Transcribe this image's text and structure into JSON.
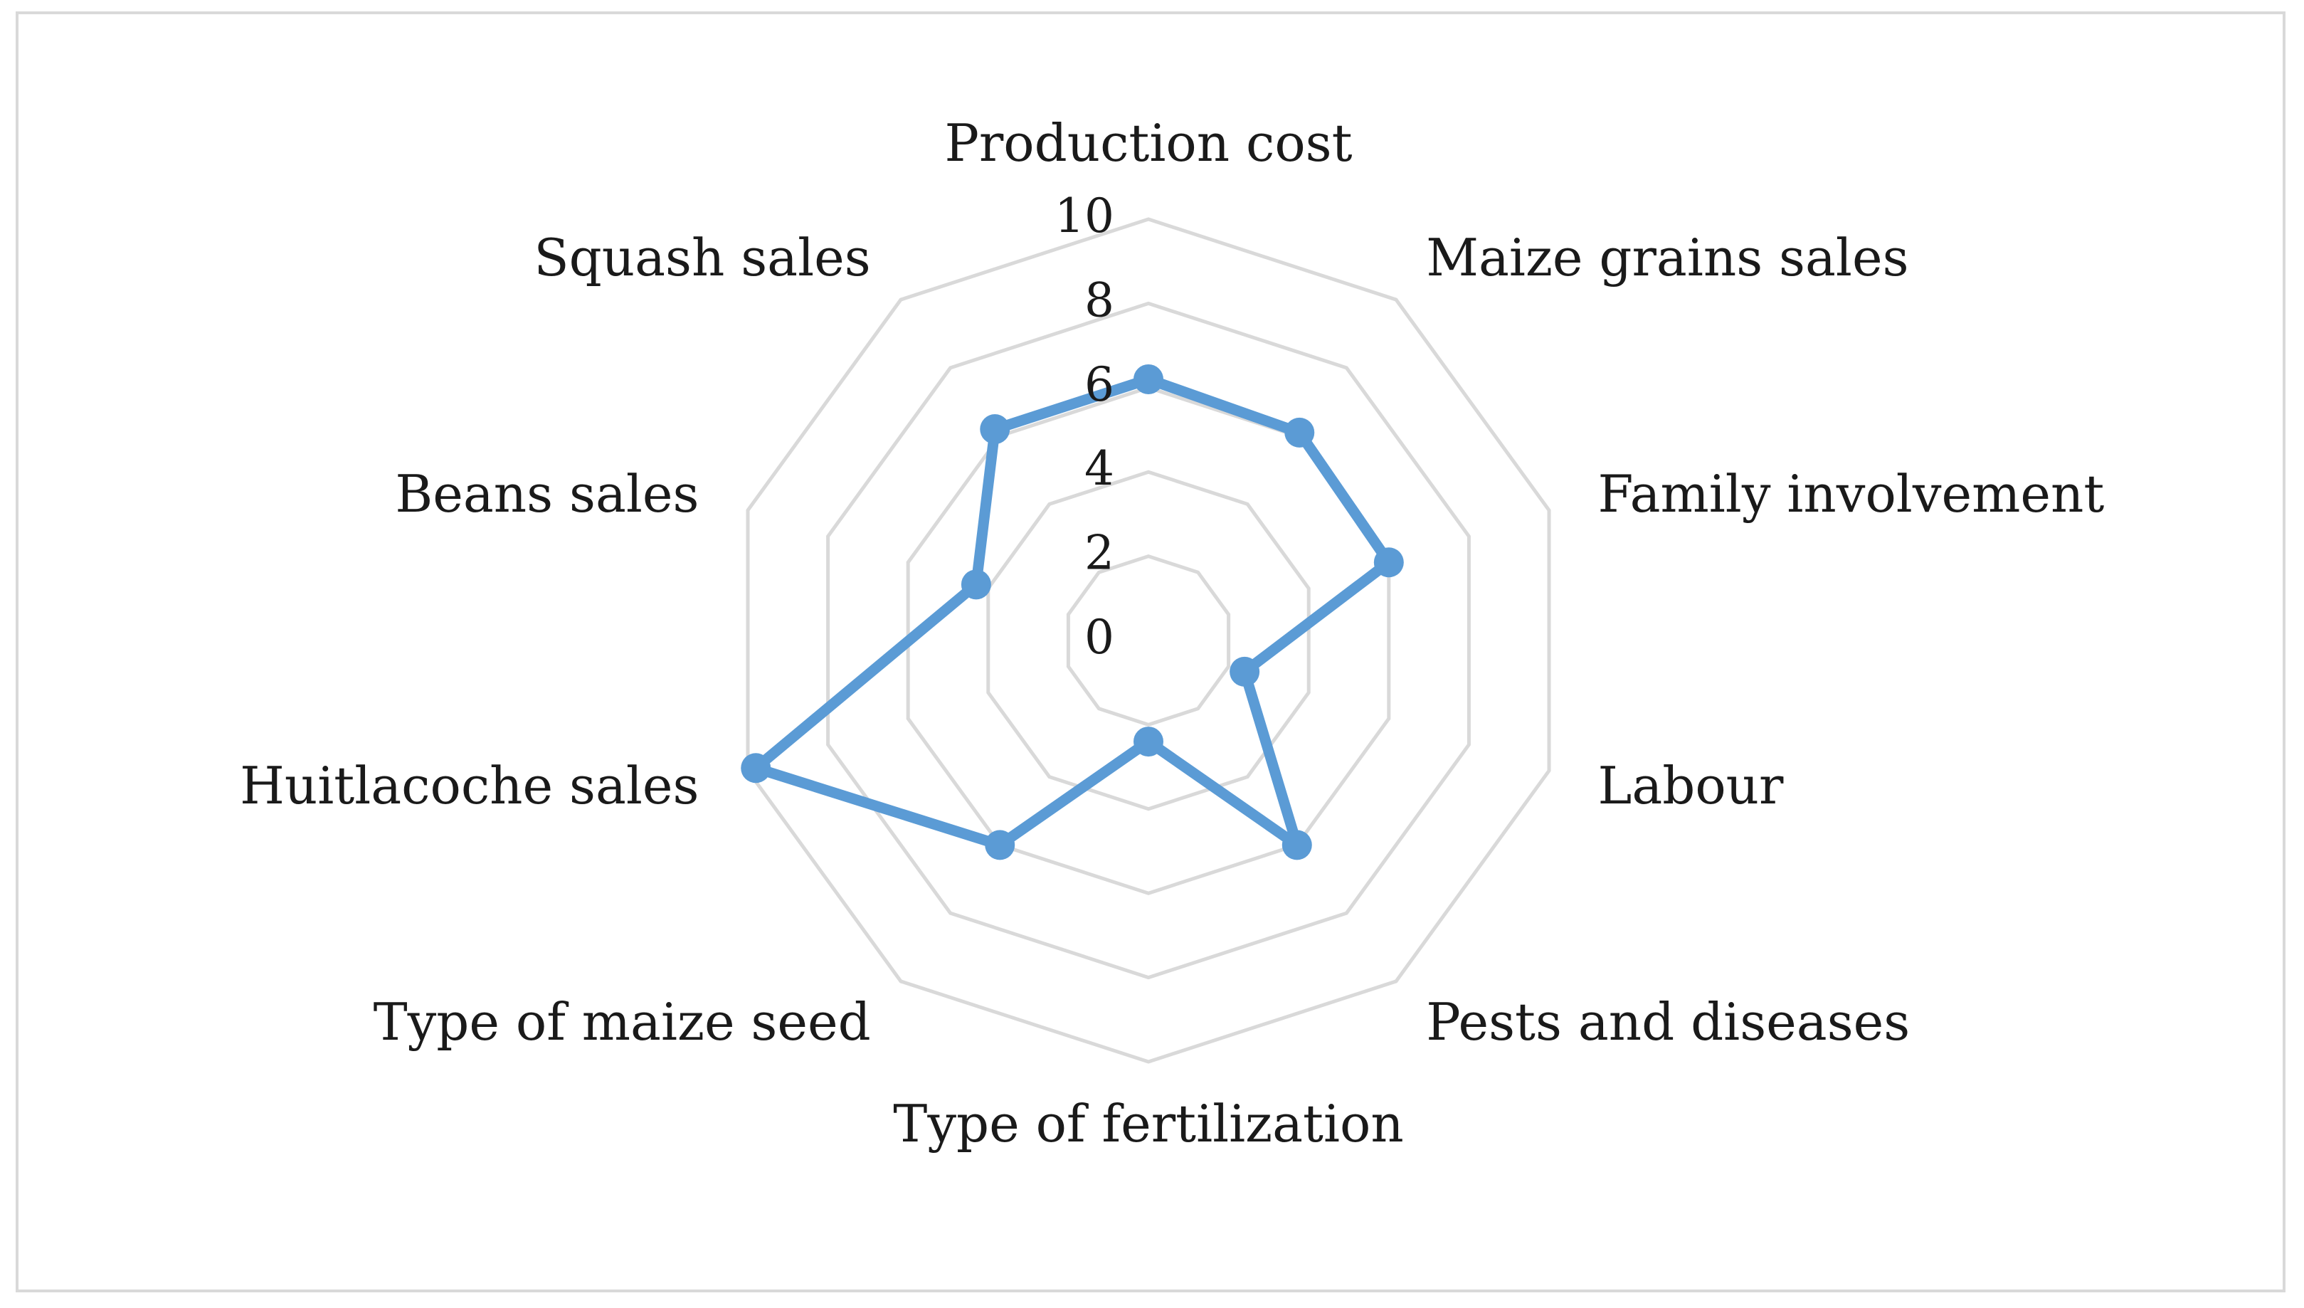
{
  "chart_data": {
    "type": "radar",
    "categories": [
      "Production cost",
      "Maize grains sales",
      "Family involvement",
      "Labour",
      "Pests and diseases",
      "Type of fertilization",
      "Type of maize seed",
      "Huitlacoche sales",
      "Beans sales",
      "Squash sales"
    ],
    "series": [
      {
        "values": [
          6.2,
          6.1,
          6.0,
          2.4,
          6.0,
          2.4,
          6.0,
          9.8,
          4.3,
          6.2
        ],
        "color": "#5b9bd5"
      }
    ],
    "r_range": [
      0,
      10
    ],
    "r_ticks": [
      "0",
      "2",
      "4",
      "6",
      "8",
      "10"
    ],
    "grid": true,
    "grid_color": "#d9d9d9",
    "legend": "none"
  }
}
